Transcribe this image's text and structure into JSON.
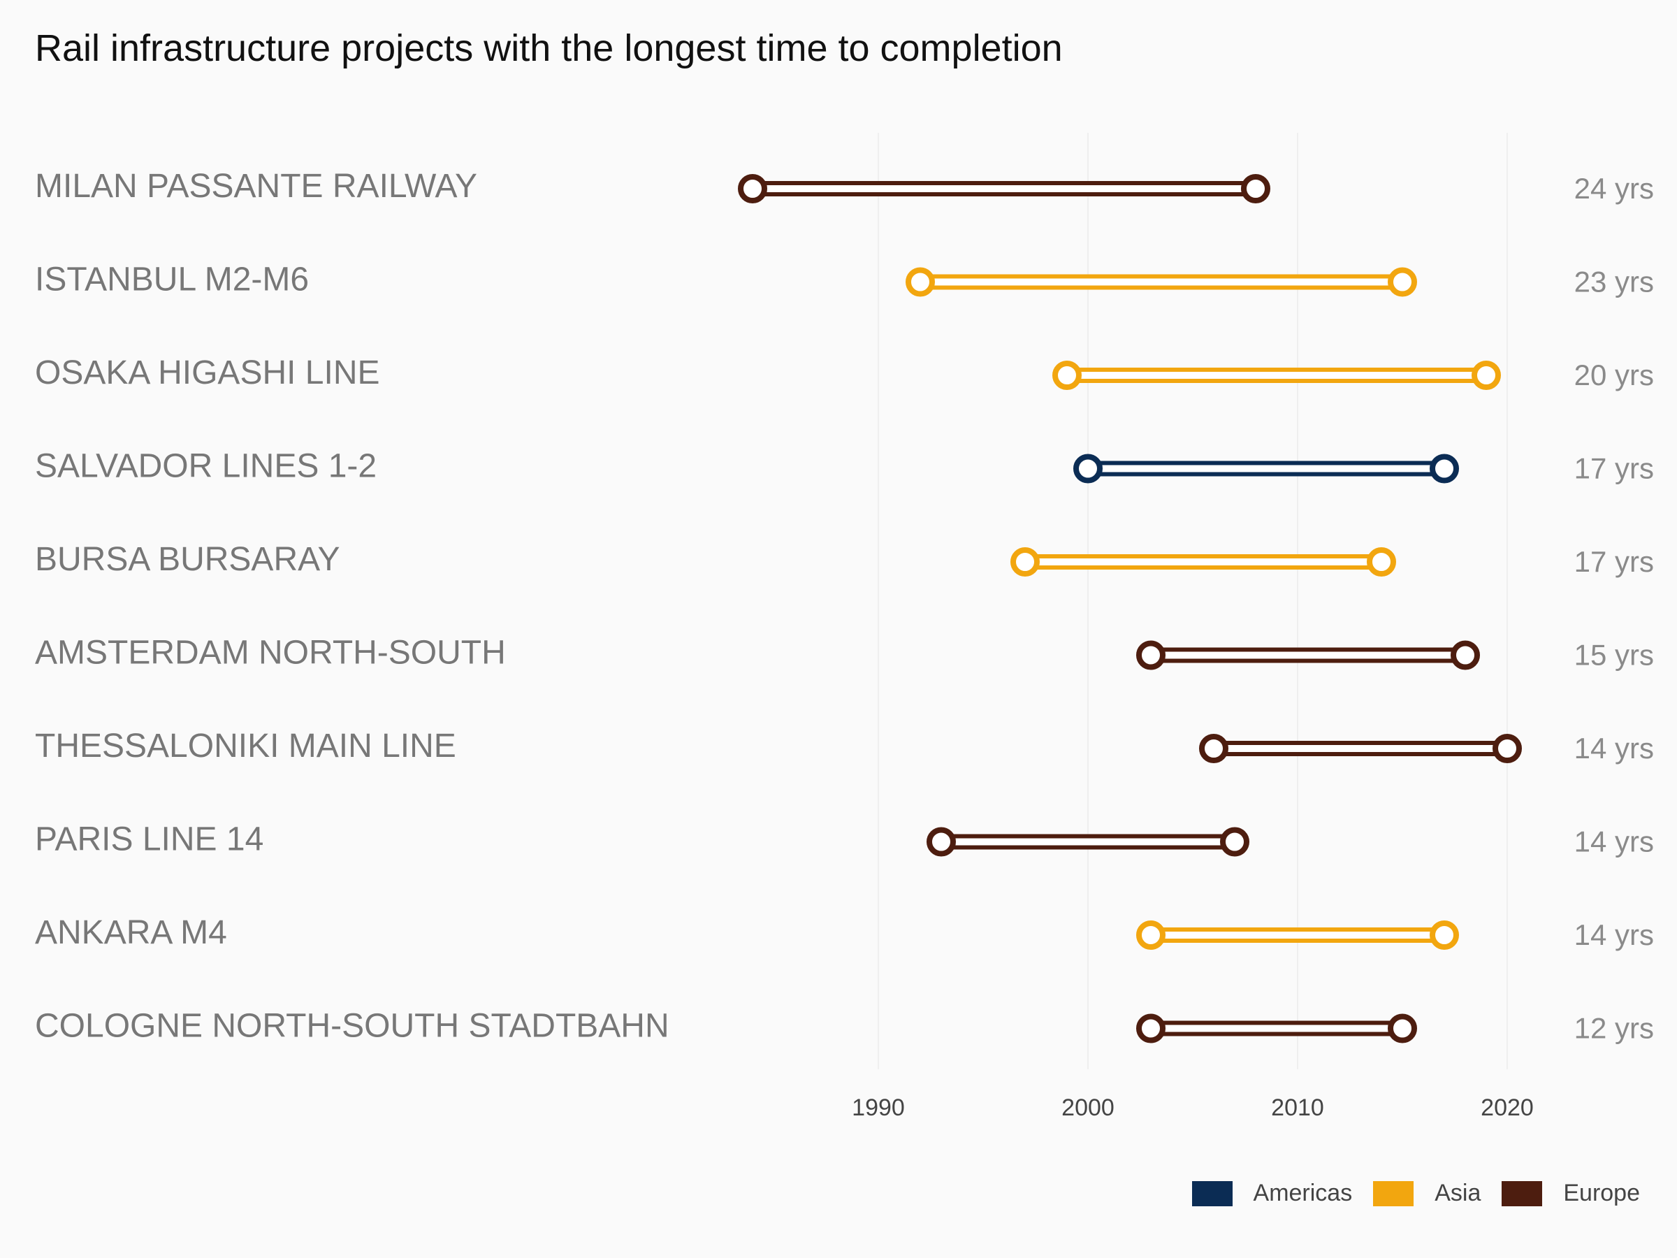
{
  "title": "Rail infrastructure projects with the longest time to completion",
  "colors": {
    "Americas": "#0b2c54",
    "Asia": "#f2a60f",
    "Europe": "#4d1d0f"
  },
  "legend": {
    "position": "bottom-right",
    "items": [
      "Americas",
      "Asia",
      "Europe"
    ]
  },
  "chart_data": {
    "type": "dumbbell",
    "xlim": [
      1983,
      2022
    ],
    "x_ticks": [
      1990,
      2000,
      2010,
      2020
    ],
    "x_tick_labels": [
      "1990",
      "2000",
      "2010",
      "2020"
    ],
    "grid": "vertical-major",
    "projects": [
      {
        "name": "MILAN PASSANTE RAILWAY",
        "start": 1984,
        "end": 2008,
        "region": "Europe",
        "duration": "24 yrs"
      },
      {
        "name": "ISTANBUL M2-M6",
        "start": 1992,
        "end": 2015,
        "region": "Asia",
        "duration": "23 yrs"
      },
      {
        "name": "OSAKA HIGASHI LINE",
        "start": 1999,
        "end": 2019,
        "region": "Asia",
        "duration": "20 yrs"
      },
      {
        "name": "SALVADOR LINES 1-2",
        "start": 2000,
        "end": 2017,
        "region": "Americas",
        "duration": "17 yrs"
      },
      {
        "name": "BURSA BURSARAY",
        "start": 1997,
        "end": 2014,
        "region": "Asia",
        "duration": "17 yrs"
      },
      {
        "name": "AMSTERDAM NORTH-SOUTH",
        "start": 2003,
        "end": 2018,
        "region": "Europe",
        "duration": "15 yrs"
      },
      {
        "name": "THESSALONIKI MAIN LINE",
        "start": 2006,
        "end": 2020,
        "region": "Europe",
        "duration": "14 yrs"
      },
      {
        "name": "PARIS LINE 14",
        "start": 1993,
        "end": 2007,
        "region": "Europe",
        "duration": "14 yrs"
      },
      {
        "name": "ANKARA M4",
        "start": 2003,
        "end": 2017,
        "region": "Asia",
        "duration": "14 yrs"
      },
      {
        "name": "COLOGNE NORTH-SOUTH STADTBAHN",
        "start": 2003,
        "end": 2015,
        "region": "Europe",
        "duration": "12 yrs"
      }
    ]
  }
}
